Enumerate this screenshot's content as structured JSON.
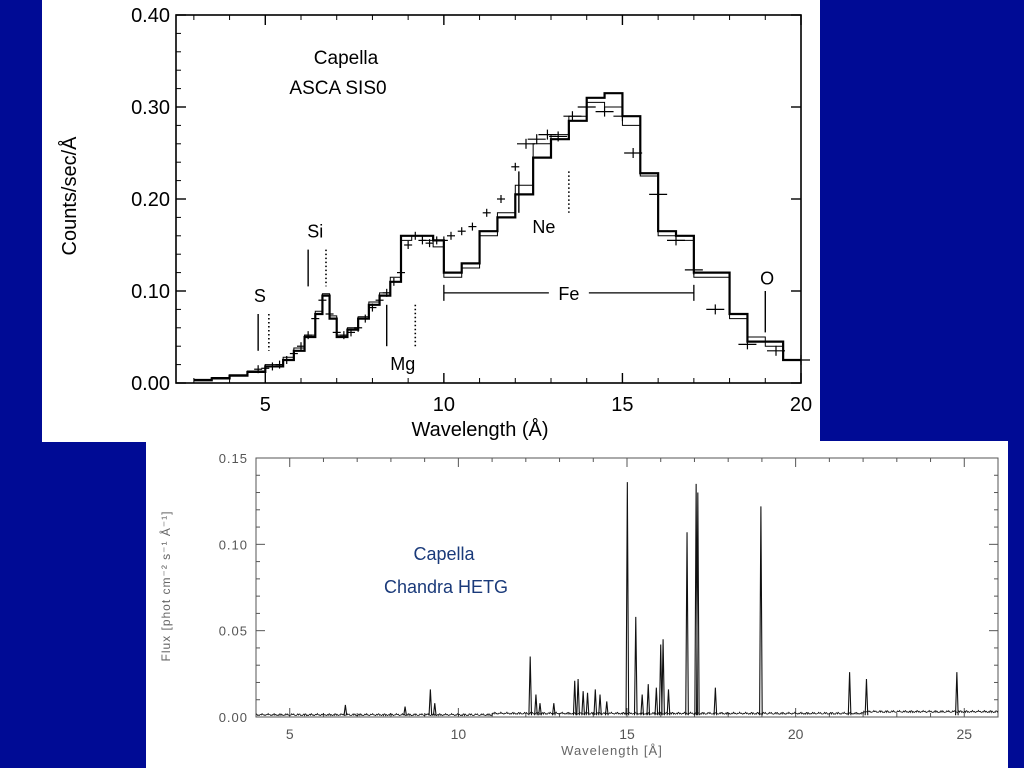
{
  "background_color": "#000b95",
  "chart_data": [
    {
      "type": "line",
      "title": "Capella",
      "subtitle": "ASCA SIS0",
      "xlabel": "Wavelength (Å)",
      "ylabel": "Counts/sec/Å",
      "xlim": [
        2.5,
        20
      ],
      "ylim": [
        0,
        0.4
      ],
      "xticks": [
        5,
        10,
        15,
        20
      ],
      "yticks": [
        "0.00",
        "0.10",
        "0.20",
        "0.30",
        "0.40"
      ],
      "grid": false,
      "series": [
        {
          "role": "model-thick-histogram",
          "x": [
            3.0,
            3.5,
            4.0,
            4.5,
            5.0,
            5.5,
            5.8,
            6.1,
            6.4,
            6.6,
            6.8,
            7.0,
            7.3,
            7.6,
            7.9,
            8.2,
            8.5,
            8.8,
            9.1,
            9.4,
            9.7,
            10.0,
            10.5,
            11.0,
            11.5,
            12.0,
            12.5,
            13.0,
            13.5,
            14.0,
            14.5,
            15.0,
            15.5,
            16.0,
            16.5,
            17.0,
            17.5,
            18.0,
            18.5,
            19.0,
            19.5,
            20.0
          ],
          "y": [
            0.003,
            0.005,
            0.008,
            0.012,
            0.018,
            0.025,
            0.035,
            0.05,
            0.075,
            0.095,
            0.07,
            0.05,
            0.058,
            0.07,
            0.085,
            0.095,
            0.11,
            0.16,
            0.16,
            0.16,
            0.155,
            0.12,
            0.13,
            0.165,
            0.18,
            0.205,
            0.245,
            0.265,
            0.285,
            0.31,
            0.315,
            0.29,
            0.228,
            0.165,
            0.16,
            0.12,
            0.12,
            0.075,
            0.045,
            0.045,
            0.025,
            0.025
          ]
        },
        {
          "role": "model-thin-histogram",
          "x": [
            3.0,
            3.5,
            4.0,
            4.5,
            5.0,
            5.5,
            5.8,
            6.1,
            6.4,
            6.6,
            6.8,
            7.0,
            7.3,
            7.6,
            7.9,
            8.2,
            8.5,
            8.8,
            9.1,
            9.4,
            9.7,
            10.0,
            10.5,
            11.0,
            11.5,
            12.0,
            12.5,
            13.0,
            13.5,
            14.0,
            14.5,
            15.0,
            15.5,
            16.0,
            16.5,
            17.0,
            17.5,
            18.0,
            18.5,
            19.0,
            19.5,
            20.0
          ],
          "y": [
            0.004,
            0.006,
            0.009,
            0.013,
            0.02,
            0.028,
            0.038,
            0.052,
            0.078,
            0.097,
            0.073,
            0.052,
            0.06,
            0.072,
            0.088,
            0.098,
            0.115,
            0.155,
            0.16,
            0.155,
            0.148,
            0.115,
            0.125,
            0.16,
            0.185,
            0.215,
            0.26,
            0.27,
            0.29,
            0.305,
            0.3,
            0.28,
            0.225,
            0.16,
            0.155,
            0.115,
            0.115,
            0.07,
            0.05,
            0.04,
            0.025,
            0.025
          ]
        },
        {
          "role": "data-crosses",
          "x": [
            4.8,
            5.0,
            5.2,
            5.4,
            5.6,
            5.8,
            6.0,
            6.2,
            6.4,
            6.6,
            6.8,
            7.0,
            7.2,
            7.4,
            7.6,
            7.8,
            8.0,
            8.2,
            8.4,
            8.6,
            8.8,
            9.0,
            9.2,
            9.4,
            9.6,
            9.8,
            10.0,
            10.2,
            10.5,
            10.8,
            11.2,
            11.6,
            12.0,
            12.3,
            12.6,
            12.9,
            13.2,
            13.6,
            14.0,
            14.5,
            15.0,
            15.3,
            16.0,
            16.5,
            17.0,
            17.6,
            18.5,
            19.3,
            20.0
          ],
          "y": [
            0.015,
            0.016,
            0.018,
            0.02,
            0.025,
            0.032,
            0.04,
            0.052,
            0.07,
            0.09,
            0.075,
            0.055,
            0.052,
            0.055,
            0.06,
            0.07,
            0.082,
            0.09,
            0.098,
            0.11,
            0.12,
            0.15,
            0.16,
            0.155,
            0.152,
            0.155,
            0.155,
            0.16,
            0.165,
            0.17,
            0.185,
            0.2,
            0.235,
            0.26,
            0.265,
            0.27,
            0.268,
            0.29,
            0.3,
            0.295,
            0.29,
            0.25,
            0.205,
            0.155,
            0.123,
            0.08,
            0.042,
            0.035,
            0.025
          ]
        }
      ],
      "annotations": [
        {
          "label": "S",
          "x": 5.0
        },
        {
          "label": "Si",
          "x": 6.5
        },
        {
          "label": "Mg",
          "x": 8.8
        },
        {
          "label": "Ne",
          "x": 12.8
        },
        {
          "label": "Fe",
          "x_range": [
            10,
            17
          ]
        },
        {
          "label": "O",
          "x": 19.0
        }
      ],
      "line_markers": [
        {
          "x": 4.8,
          "style": "solid",
          "y_top": 0.075,
          "y_bottom": 0.035
        },
        {
          "x": 5.1,
          "style": "dotted",
          "y_top": 0.075,
          "y_bottom": 0.035
        },
        {
          "x": 6.2,
          "style": "solid",
          "y_top": 0.145,
          "y_bottom": 0.105
        },
        {
          "x": 6.7,
          "style": "dotted",
          "y_top": 0.145,
          "y_bottom": 0.105
        },
        {
          "x": 8.4,
          "style": "solid",
          "y_top": 0.085,
          "y_bottom": 0.04
        },
        {
          "x": 9.2,
          "style": "dotted",
          "y_top": 0.085,
          "y_bottom": 0.04
        },
        {
          "x": 12.1,
          "style": "solid",
          "y_top": 0.23,
          "y_bottom": 0.185
        },
        {
          "x": 13.5,
          "style": "dotted",
          "y_top": 0.23,
          "y_bottom": 0.185
        },
        {
          "x": 19.0,
          "style": "solid",
          "y_top": 0.1,
          "y_bottom": 0.055
        }
      ]
    },
    {
      "type": "line",
      "title": "Capella",
      "subtitle": "Chandra HETG",
      "title_color": "#1a3a7a",
      "xlabel": "Wavelength [Å]",
      "ylabel": "Flux [phot cm⁻² s⁻¹ Å⁻¹]",
      "xlim": [
        4,
        26
      ],
      "ylim": [
        0,
        0.15
      ],
      "xticks": [
        5,
        10,
        15,
        20,
        25
      ],
      "yticks": [
        "0.00",
        "0.05",
        "0.10",
        "0.15"
      ],
      "grid": false,
      "lines": [
        {
          "x": 6.65,
          "y": 0.007
        },
        {
          "x": 8.42,
          "y": 0.006
        },
        {
          "x": 9.17,
          "y": 0.016
        },
        {
          "x": 9.3,
          "y": 0.008
        },
        {
          "x": 12.13,
          "y": 0.035
        },
        {
          "x": 12.3,
          "y": 0.013
        },
        {
          "x": 12.42,
          "y": 0.008
        },
        {
          "x": 12.83,
          "y": 0.008
        },
        {
          "x": 13.45,
          "y": 0.021
        },
        {
          "x": 13.55,
          "y": 0.022
        },
        {
          "x": 13.7,
          "y": 0.015
        },
        {
          "x": 13.83,
          "y": 0.014
        },
        {
          "x": 14.06,
          "y": 0.016
        },
        {
          "x": 14.2,
          "y": 0.013
        },
        {
          "x": 14.4,
          "y": 0.009
        },
        {
          "x": 15.01,
          "y": 0.136
        },
        {
          "x": 15.26,
          "y": 0.058
        },
        {
          "x": 15.45,
          "y": 0.013
        },
        {
          "x": 15.63,
          "y": 0.019
        },
        {
          "x": 15.87,
          "y": 0.017
        },
        {
          "x": 16.0,
          "y": 0.042
        },
        {
          "x": 16.07,
          "y": 0.045
        },
        {
          "x": 16.23,
          "y": 0.016
        },
        {
          "x": 16.78,
          "y": 0.107
        },
        {
          "x": 17.05,
          "y": 0.135
        },
        {
          "x": 17.1,
          "y": 0.13
        },
        {
          "x": 17.62,
          "y": 0.017
        },
        {
          "x": 18.97,
          "y": 0.122
        },
        {
          "x": 21.6,
          "y": 0.026
        },
        {
          "x": 22.1,
          "y": 0.022
        },
        {
          "x": 24.78,
          "y": 0.026
        }
      ]
    }
  ]
}
